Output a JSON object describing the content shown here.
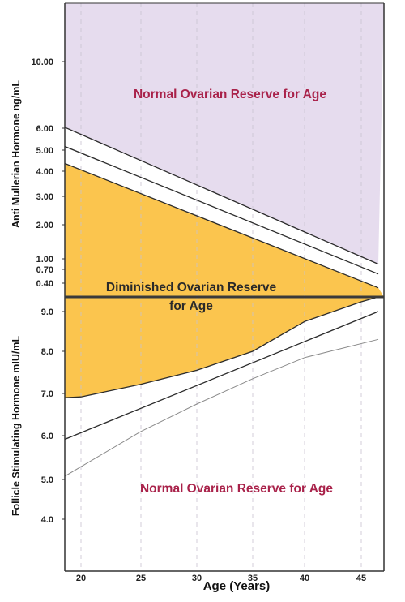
{
  "chart_data": {
    "type": "area",
    "xlabel": "Age (Years)",
    "x_ticks": [
      "20",
      "25",
      "30",
      "35",
      "40",
      "45"
    ],
    "xlim": [
      18.5,
      46.5
    ],
    "grid": true,
    "panels": [
      {
        "name": "amh",
        "ylabel": "Anti Mullerian Hormone ng/mL",
        "y_ticks": [
          "10.00",
          "6.00",
          "5.00",
          "4.00",
          "3.00",
          "2.00",
          "1.00",
          "0.70",
          "0.40"
        ],
        "region_label": "Normal Ovarian Reserve for Age",
        "series": [
          {
            "x": [
              18.5,
              46.5
            ],
            "y": [
              6.1,
              0.85
            ]
          },
          {
            "x": [
              18.5,
              46.5
            ],
            "y": [
              5.2,
              0.6
            ]
          },
          {
            "x": [
              18.5,
              46.5
            ],
            "y": [
              4.4,
              0.3
            ]
          }
        ]
      },
      {
        "name": "fsh",
        "ylabel": "Follicle Stimulating Hormone mIU/mL",
        "y_ticks": [
          "9.0",
          "8.0",
          "7.0",
          "6.0",
          "5.0",
          "4.0"
        ],
        "region_label": "Normal Ovarian Reserve for Age",
        "series": [
          {
            "x": [
              18.5,
              20,
              25,
              30,
              35,
              40,
              45,
              46.5
            ],
            "y": [
              6.9,
              6.92,
              7.22,
              7.55,
              8.0,
              8.75,
              9.5,
              9.75
            ]
          },
          {
            "x": [
              18.5,
              46.5
            ],
            "y": [
              5.9,
              9.0
            ]
          },
          {
            "x": [
              18.5,
              25,
              30,
              35,
              40,
              46.5
            ],
            "y": [
              5.05,
              6.1,
              6.75,
              7.35,
              7.85,
              8.3
            ]
          }
        ]
      }
    ],
    "center_label_line1": "Diminished Ovarian Reserve",
    "center_label_line2": "for Age"
  },
  "colors": {
    "normal_fill": "#e6dcee",
    "diminished_fill": "#fbc54e",
    "grid": "#c9c2d2",
    "line": "#2b2b2b",
    "label": "#a9224a",
    "divider": "#3a3a3a"
  }
}
